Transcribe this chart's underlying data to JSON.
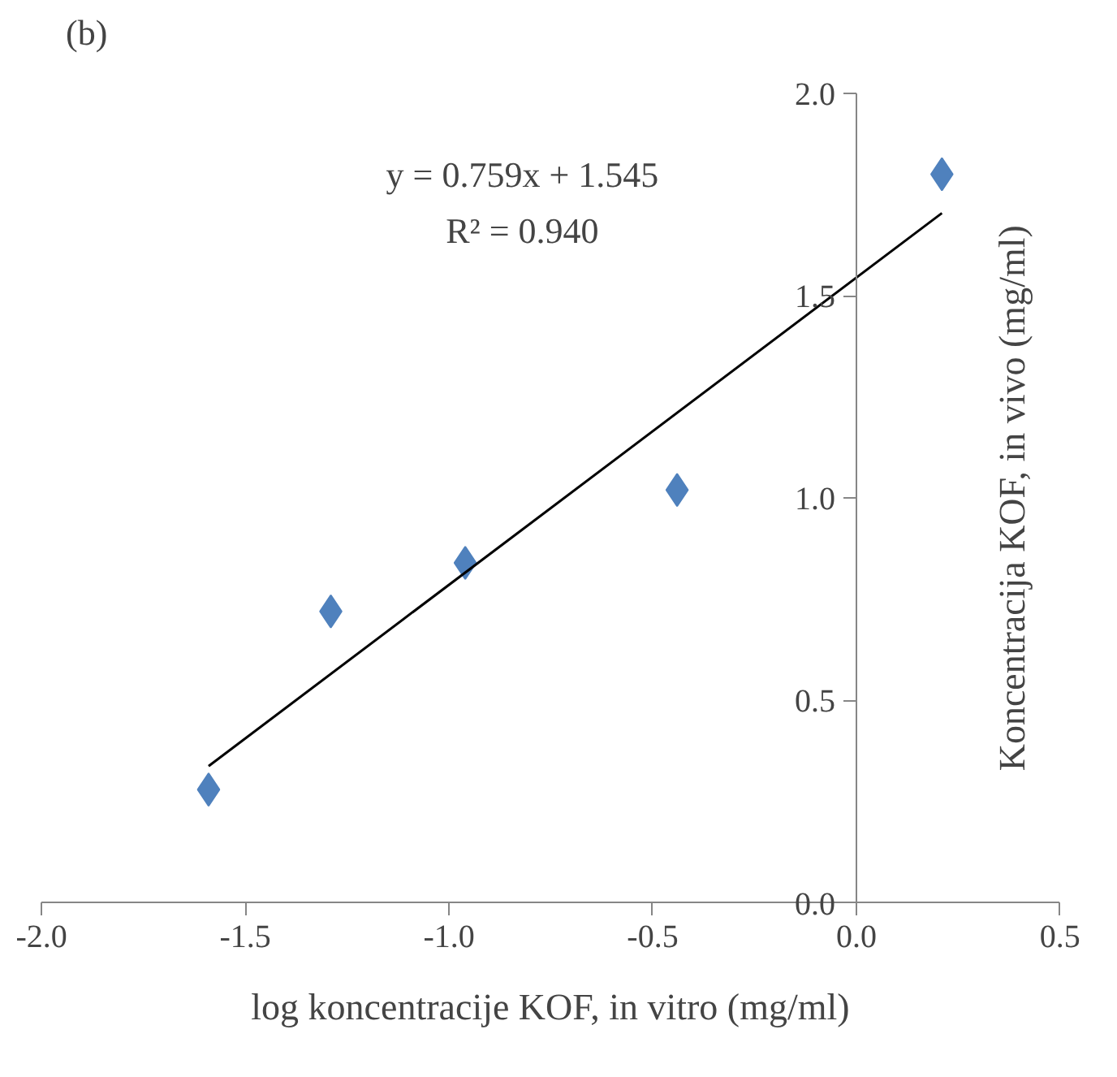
{
  "chart_data": {
    "type": "scatter",
    "xlabel": "log koncentracije KOF, in vitro (mg/ml)",
    "ylabel": "Koncentracija KOF, in vivo (mg/ml)",
    "annotations": [
      "(b)",
      "y = 0.759x + 1.545",
      "R² = 0.940"
    ],
    "x": [
      -1.59,
      -1.29,
      -0.96,
      -0.44,
      0.21
    ],
    "series": [
      {
        "color": "#4f81bd",
        "marker": "diamond",
        "values": [
          0.28,
          0.72,
          0.84,
          1.02,
          1.8
        ]
      },
      {
        "type": "line",
        "color": "#000000",
        "x": [
          -1.59,
          0.21
        ],
        "values": [
          0.338,
          1.704
        ]
      }
    ],
    "xlim": [
      -2.0,
      0.5
    ],
    "ylim": [
      0.0,
      2.0
    ],
    "xticks": [
      {
        "value": -2.0,
        "label": "-2.0"
      },
      {
        "value": -1.5,
        "label": "-1.5"
      },
      {
        "value": -1.0,
        "label": "-1.0"
      },
      {
        "value": -0.5,
        "label": "-0.5"
      },
      {
        "value": 0.0,
        "label": "0.0"
      },
      {
        "value": 0.5,
        "label": "0.5"
      }
    ],
    "yticks": [
      {
        "value": 0.0,
        "label": "0.0"
      },
      {
        "value": 0.5,
        "label": "0.5"
      },
      {
        "value": 1.0,
        "label": "1.0"
      },
      {
        "value": 1.5,
        "label": "1.5"
      },
      {
        "value": 2.0,
        "label": "2.0"
      }
    ],
    "grid": false
  }
}
